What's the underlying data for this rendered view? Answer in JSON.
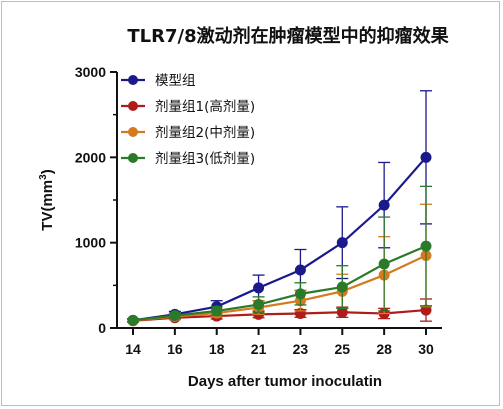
{
  "chart_data": {
    "type": "line",
    "title": "TLR7/8激动剂在肿瘤模型中的抑瘤效果",
    "xlabel": "Days after tumor inoculatin",
    "ylabel": "TV(mm",
    "ylabel_sup": "3",
    "ylabel_close": ")",
    "x": [
      14,
      16,
      18,
      21,
      23,
      25,
      28,
      30
    ],
    "xticks": [
      "14",
      "16",
      "18",
      "21",
      "23",
      "25",
      "28",
      "30"
    ],
    "yticks": [
      "0",
      "1000",
      "2000",
      "3000"
    ],
    "ylim": [
      0,
      3000
    ],
    "legend_position": "top-left",
    "grid": false,
    "series": [
      {
        "name": "模型组",
        "color": "#1a1a8c",
        "values": [
          90,
          160,
          250,
          470,
          680,
          1000,
          1440,
          2000
        ],
        "errors": [
          20,
          35,
          70,
          150,
          240,
          420,
          500,
          780
        ]
      },
      {
        "name": "剂量组1(高剂量)",
        "color": "#b01c1c",
        "values": [
          85,
          120,
          140,
          160,
          170,
          185,
          170,
          210
        ],
        "errors": [
          15,
          20,
          35,
          40,
          45,
          60,
          60,
          130
        ]
      },
      {
        "name": "剂量组2(中剂量)",
        "color": "#d47a1f",
        "values": [
          88,
          135,
          175,
          240,
          320,
          430,
          620,
          850
        ],
        "errors": [
          15,
          30,
          45,
          80,
          120,
          200,
          450,
          600
        ]
      },
      {
        "name": "剂量组3(低剂量)",
        "color": "#2a7a2a",
        "values": [
          90,
          145,
          200,
          275,
          400,
          480,
          750,
          960
        ],
        "errors": [
          18,
          30,
          50,
          90,
          130,
          250,
          550,
          700
        ]
      }
    ]
  }
}
